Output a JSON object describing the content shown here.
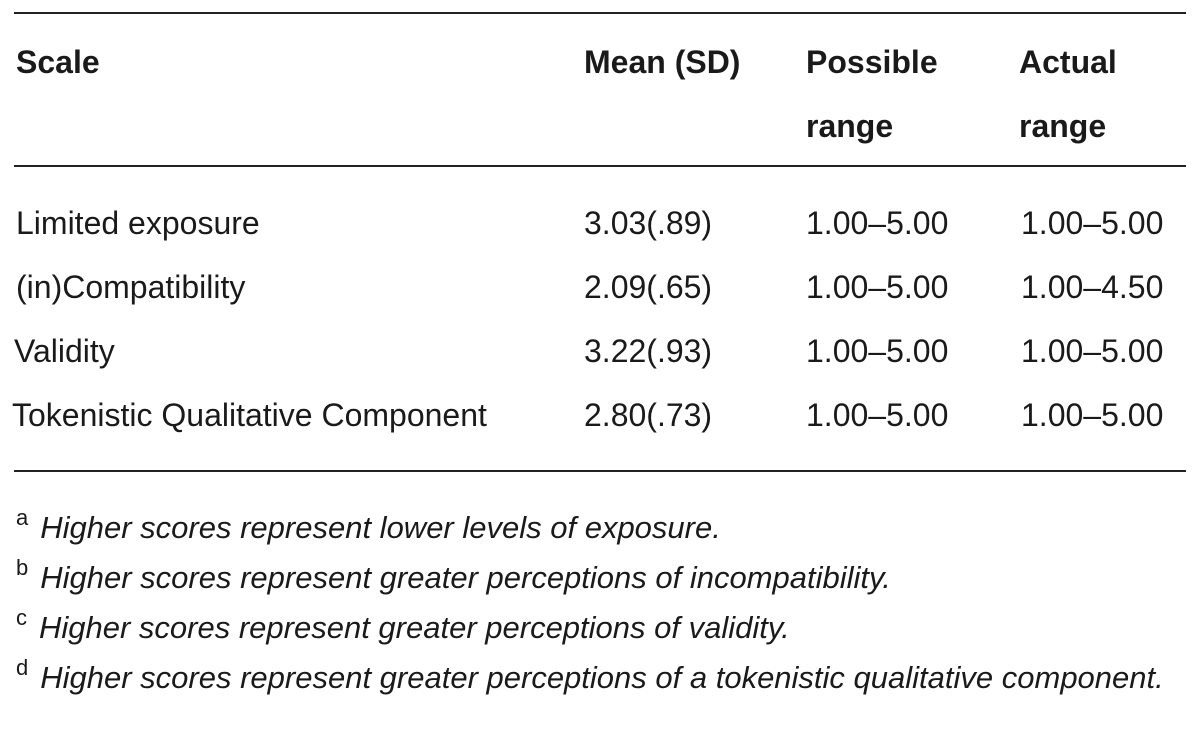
{
  "table": {
    "headers": {
      "scale": "Scale",
      "mean": "Mean (SD)",
      "possible_line1": "Possible",
      "possible_line2": "range",
      "actual_line1": "Actual",
      "actual_line2": "range"
    },
    "rows": [
      {
        "scale": "Limited exposure",
        "mean": "3.03(.89)",
        "possible": "1.00–5.00",
        "actual": "1.00–5.00"
      },
      {
        "scale": "(in)Compatibility",
        "mean": "2.09(.65)",
        "possible": "1.00–5.00",
        "actual": "1.00–4.50"
      },
      {
        "scale": "Validity",
        "mean": "3.22(.93)",
        "possible": "1.00–5.00",
        "actual": "1.00–5.00"
      },
      {
        "scale": "Tokenistic Qualitative Component",
        "mean": "2.80(.73)",
        "possible": "1.00–5.00",
        "actual": "1.00–5.00"
      }
    ]
  },
  "footnotes": [
    {
      "mark": "a",
      "text": "Higher scores represent lower levels of exposure."
    },
    {
      "mark": "b",
      "text": "Higher scores represent greater perceptions of incompatibility."
    },
    {
      "mark": "c",
      "text": "Higher scores represent greater perceptions of validity."
    },
    {
      "mark": "d",
      "text": "Higher scores represent greater perceptions of a tokenistic qualitative component."
    }
  ]
}
